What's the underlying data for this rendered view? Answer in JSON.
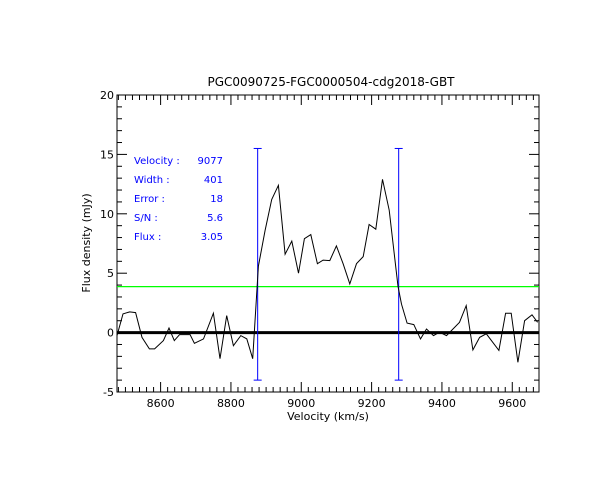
{
  "chart_data": {
    "type": "line",
    "title": "PGC0090725-FGC0000504-cdg2018-GBT",
    "xlabel": "Velocity (km/s)",
    "ylabel": "Flux density (mJy)",
    "xlim": [
      8476,
      9676
    ],
    "ylim": [
      -5,
      20
    ],
    "x_ticks": [
      8600,
      8800,
      9000,
      9200,
      9400,
      9600
    ],
    "x_tick_labels": [
      "8600",
      "8800",
      "9000",
      "9200",
      "9400",
      "9600"
    ],
    "y_ticks": [
      -5,
      0,
      5,
      10,
      15,
      20
    ],
    "y_tick_labels": [
      "-5",
      "0",
      "5",
      "10",
      "15",
      "20"
    ],
    "grid": false,
    "series": [
      {
        "color": "#000000",
        "x": [
          8476,
          8493,
          8512,
          8529,
          8547,
          8568,
          8583,
          8608,
          8624,
          8639,
          8654,
          8684,
          8696,
          8722,
          8750,
          8769,
          8788,
          8807,
          8828,
          8845,
          8862,
          8876,
          8878,
          8897,
          8916,
          8935,
          8954,
          8973,
          8992,
          9009,
          9027,
          9046,
          9062,
          9081,
          9100,
          9119,
          9138,
          9157,
          9176,
          9193,
          9212,
          9231,
          9250,
          9275,
          9285,
          9301,
          9320,
          9339,
          9356,
          9376,
          9393,
          9413,
          9450,
          9469,
          9488,
          9507,
          9526,
          9562,
          9581,
          9597,
          9616,
          9635,
          9656,
          9672
        ],
        "y": [
          -0.25,
          1.57,
          1.74,
          1.68,
          -0.4,
          -1.37,
          -1.37,
          -0.67,
          0.39,
          -0.67,
          -0.17,
          -0.17,
          -0.9,
          -0.53,
          1.63,
          -2.2,
          1.43,
          -1.1,
          -0.25,
          -0.53,
          -2.2,
          4.65,
          5.6,
          8.6,
          11.2,
          12.4,
          6.6,
          7.7,
          5.0,
          7.9,
          8.25,
          5.8,
          6.1,
          6.06,
          7.3,
          5.8,
          4.1,
          5.8,
          6.4,
          9.1,
          8.7,
          12.9,
          10.3,
          3.9,
          2.4,
          0.8,
          0.67,
          -0.53,
          0.3,
          -0.25,
          0.03,
          -0.25,
          0.87,
          2.27,
          -1.46,
          -0.4,
          -0.1,
          -1.5,
          1.63,
          1.63,
          -2.5,
          1.0,
          1.5,
          0.87
        ]
      }
    ],
    "zero_line": {
      "y": 0,
      "color": "#000000"
    },
    "threshold_line": {
      "y": 3.87,
      "color": "#00ff00"
    },
    "markers": {
      "x": [
        8876,
        9277
      ],
      "y_range": [
        -4,
        15.5
      ],
      "color": "#0000ff"
    },
    "annotations": [
      {
        "label": "Velocity :",
        "value": "9077"
      },
      {
        "label": "Width :",
        "value": "401"
      },
      {
        "label": "Error :",
        "value": "18"
      },
      {
        "label": "S/N :",
        "value": "5.6"
      },
      {
        "label": "Flux :",
        "value": "3.05"
      }
    ]
  }
}
